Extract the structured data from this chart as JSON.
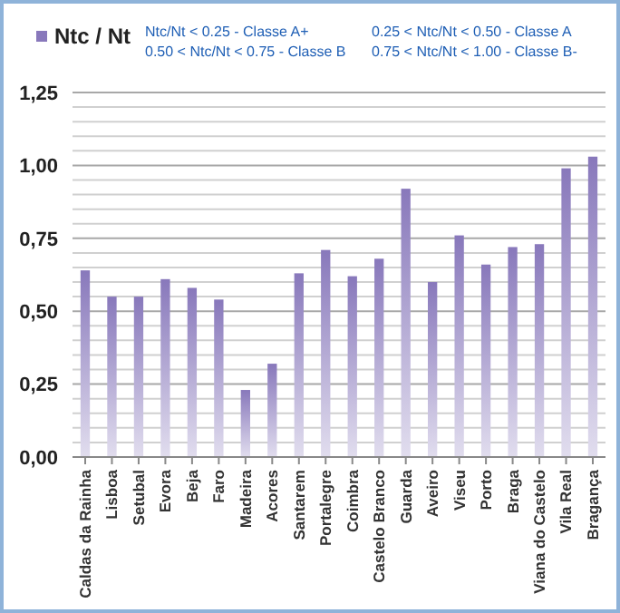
{
  "chart_data": {
    "type": "bar",
    "categories": [
      "Caldas da Rainha",
      "Lisboa",
      "Setubal",
      "Evora",
      "Beja",
      "Faro",
      "Madeira",
      "Acores",
      "Santarem",
      "Portalegre",
      "Coimbra",
      "Castelo Branco",
      "Guarda",
      "Aveiro",
      "Viseu",
      "Porto",
      "Braga",
      "Viana do Castelo",
      "Vila Real",
      "Bragança"
    ],
    "series": [
      {
        "name": "Ntc / Nt",
        "color": "#8878bb",
        "values": [
          0.64,
          0.55,
          0.55,
          0.61,
          0.58,
          0.54,
          0.23,
          0.32,
          0.63,
          0.71,
          0.62,
          0.68,
          0.92,
          0.6,
          0.76,
          0.66,
          0.72,
          0.73,
          0.99,
          1.03
        ]
      }
    ],
    "ylim": [
      0,
      1.25
    ],
    "yticks": [
      {
        "value": 0,
        "label": "0,00"
      },
      {
        "value": 0.05,
        "label": null
      },
      {
        "value": 0.1,
        "label": null
      },
      {
        "value": 0.15,
        "label": null
      },
      {
        "value": 0.2,
        "label": null
      },
      {
        "value": 0.25,
        "label": "0,25"
      },
      {
        "value": 0.3,
        "label": null
      },
      {
        "value": 0.35,
        "label": null
      },
      {
        "value": 0.4,
        "label": null
      },
      {
        "value": 0.45,
        "label": null
      },
      {
        "value": 0.5,
        "label": "0,50"
      },
      {
        "value": 0.55,
        "label": null
      },
      {
        "value": 0.6,
        "label": null
      },
      {
        "value": 0.65,
        "label": null
      },
      {
        "value": 0.7,
        "label": null
      },
      {
        "value": 0.75,
        "label": "0,75"
      },
      {
        "value": 0.8,
        "label": null
      },
      {
        "value": 0.85,
        "label": null
      },
      {
        "value": 0.9,
        "label": null
      },
      {
        "value": 0.95,
        "label": null
      },
      {
        "value": 1,
        "label": "1,00"
      },
      {
        "value": 1.05,
        "label": null
      },
      {
        "value": 1.1,
        "label": null
      },
      {
        "value": 1.15,
        "label": null
      },
      {
        "value": 1.2,
        "label": null
      },
      {
        "value": 1.25,
        "label": "1,25"
      }
    ],
    "grid": "y",
    "legend": "top left",
    "annotations": [
      "Ntc/Nt < 0.25 - Classe A+",
      "0.25 < Ntc/Nt < 0.50 - Classe A",
      "0.50 < Ntc/Nt < 0.75 - Classe B",
      "0.75 < Ntc/Nt < 1.00 - Classe B-"
    ]
  }
}
